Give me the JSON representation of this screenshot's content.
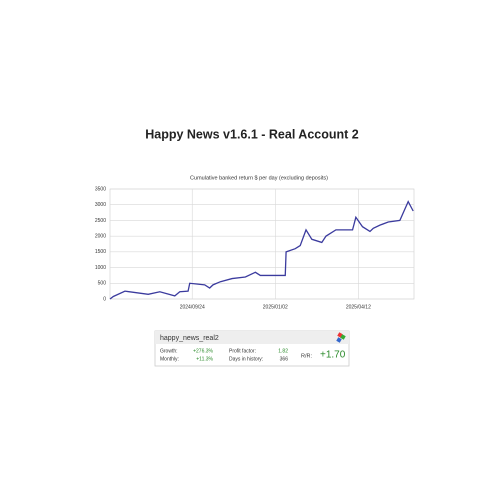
{
  "page_title": "Happy News v1.6.1 - Real Account 2",
  "chart_data": {
    "type": "line",
    "title": "Cumulative banked return $ per day (excluding deposits)",
    "x": [
      "2024/06/17",
      "2024/06/21",
      "2024/07/05",
      "2024/08/02",
      "2024/08/16",
      "2024/09/03",
      "2024/09/09",
      "2024/09/19",
      "2024/09/21",
      "2024/10/09",
      "2024/10/15",
      "2024/10/19",
      "2024/10/28",
      "2024/11/11",
      "2024/11/27",
      "2024/12/09",
      "2024/12/15",
      "2025/01/14",
      "2025/01/15",
      "2025/01/26",
      "2025/02/01",
      "2025/02/08",
      "2025/02/15",
      "2025/02/27",
      "2025/03/04",
      "2025/03/16",
      "2025/04/05",
      "2025/04/09",
      "2025/04/17",
      "2025/04/26",
      "2025/04/30",
      "2025/05/08",
      "2025/05/18",
      "2025/06/01",
      "2025/06/06",
      "2025/06/11",
      "2025/06/17"
    ],
    "values": [
      0,
      80,
      250,
      150,
      230,
      100,
      230,
      250,
      500,
      450,
      350,
      450,
      550,
      650,
      700,
      850,
      750,
      750,
      1500,
      1600,
      1700,
      2200,
      1900,
      1800,
      2000,
      2200,
      2200,
      2600,
      2300,
      2150,
      2250,
      2350,
      2450,
      2500,
      2800,
      3100,
      2800
    ],
    "color": "#3b3b9e",
    "xlim": [
      "2024/06/17",
      "2025/06/18"
    ],
    "xticks": [
      "2024/09/24",
      "2025/01/02",
      "2025/04/12"
    ],
    "ylim": [
      0,
      3500
    ],
    "yticks": [
      0,
      500,
      1000,
      1500,
      2000,
      2500,
      3000,
      3500
    ],
    "grid": true
  },
  "widget": {
    "name": "happy_news_real2",
    "rows": [
      [
        "Growth:",
        "+276.3%",
        "Profit factor:",
        "1.82"
      ],
      [
        "Monthly:",
        "+11.3%",
        "Days in history:",
        "366"
      ]
    ],
    "rr_label": "R/R:",
    "rr_value": "+1.70"
  }
}
